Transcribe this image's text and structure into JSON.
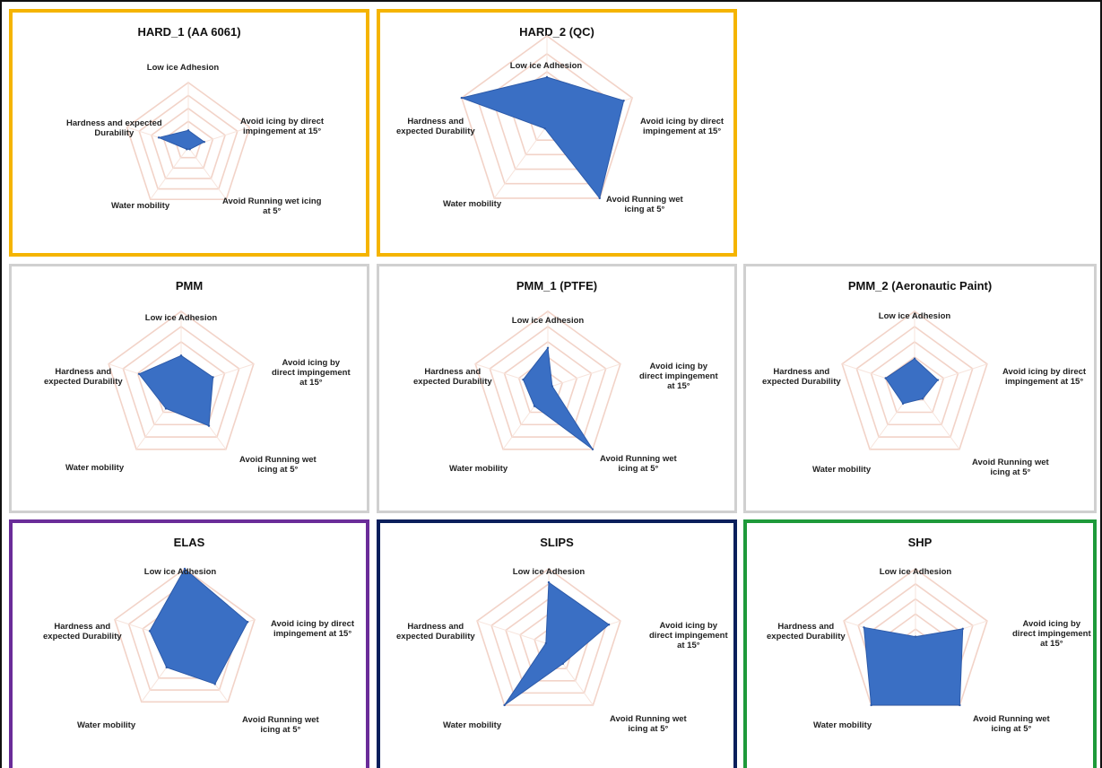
{
  "axes": [
    "Low ice Adhesion",
    "Avoid icing by direct impingement at 15°",
    "Avoid Running wet icing at 5°",
    "Water mobility",
    "Hardness and expected Durability"
  ],
  "colors": {
    "fill": "#3a6fc4",
    "stroke": "#2d5aa8",
    "grid": "#f2d3c8",
    "border_hard": "#f5b400",
    "border_pmm": "#d0d0d0",
    "border_elas": "#6a2c99",
    "border_slips": "#0a1f5c",
    "border_shp": "#1e9a3a"
  },
  "chart_data": [
    {
      "type": "radar",
      "title": "HARD_1 (AA 6061)",
      "group": "hard",
      "axis_labels": [
        "Low ice Adhesion",
        "Avoid icing by direct\nimpingement at 15°",
        "Avoid Running wet icing\nat 5°",
        "Water mobility",
        "Hardness and expected\nDurability"
      ],
      "values": [
        1.3,
        1.3,
        0.2,
        0.2,
        2.4
      ],
      "rmax": 5
    },
    {
      "type": "radar",
      "title": "HARD_2 (QC)",
      "group": "hard",
      "axis_labels": [
        "Low ice Adhesion",
        "Avoid icing by direct\nimpingement at 15°",
        "Avoid Running wet\nicing at 5°",
        "Water mobility",
        "Hardness and\nexpected Durability"
      ],
      "values": [
        2.7,
        4.5,
        5.0,
        0.2,
        5.0
      ],
      "rmax": 5
    },
    {
      "type": "radar",
      "title": "PMM",
      "group": "pmm",
      "axis_labels": [
        "Low ice Adhesion",
        "Avoid icing by\ndirect impingement\nat 15°",
        "Avoid Running wet\nicing at 5°",
        "Water mobility",
        "Hardness and\nexpected Durability"
      ],
      "values": [
        2.1,
        2.2,
        3.1,
        1.7,
        2.9
      ],
      "rmax": 5
    },
    {
      "type": "radar",
      "title": "PMM_1 (PTFE)",
      "group": "pmm",
      "axis_labels": [
        "Low ice Adhesion",
        "Avoid icing by\ndirect impingement\nat 15°",
        "Avoid Running wet\nicing at 5°",
        "Water mobility",
        "Hardness and\nexpected Durability"
      ],
      "values": [
        2.6,
        0.3,
        5.0,
        1.5,
        1.7
      ],
      "rmax": 5
    },
    {
      "type": "radar",
      "title": "PMM_2 (Aeronautic Paint)",
      "group": "pmm",
      "axis_labels": [
        "Low ice Adhesion",
        "Avoid icing by direct\nimpingement at 15°",
        "Avoid Running wet\nicing at 5°",
        "Water mobility",
        "Hardness and\nexpected Durability"
      ],
      "values": [
        1.9,
        1.6,
        0.9,
        1.3,
        2.0
      ],
      "rmax": 5
    },
    {
      "type": "radar",
      "title": "ELAS",
      "group": "elas",
      "axis_labels": [
        "Low ice Adhesion",
        "Avoid icing by direct\nimpingement at 15°",
        "Avoid Running wet\nicing at 5°",
        "Water mobility",
        "Hardness and\nexpected Durability"
      ],
      "values": [
        5.0,
        4.5,
        3.5,
        2.1,
        2.5
      ],
      "rmax": 5
    },
    {
      "type": "radar",
      "title": "SLIPS",
      "group": "slips",
      "axis_labels": [
        "Low ice Adhesion",
        "Avoid icing by\ndirect impingement\nat 15°",
        "Avoid Running wet\nicing at 5°",
        "Water mobility",
        "Hardness and\nexpected Durability"
      ],
      "values": [
        4.1,
        4.2,
        1.6,
        5.0,
        0.2
      ],
      "rmax": 5
    },
    {
      "type": "radar",
      "title": "SHP",
      "group": "shp",
      "axis_labels": [
        "Low ice Adhesion",
        "Avoid icing by\ndirect impingement\nat 15°",
        "Avoid Running wet\nicing at 5°",
        "Water mobility",
        "Hardness and\nexpected Durability"
      ],
      "values": [
        0.5,
        3.3,
        5.0,
        5.0,
        3.6
      ],
      "rmax": 5
    }
  ]
}
